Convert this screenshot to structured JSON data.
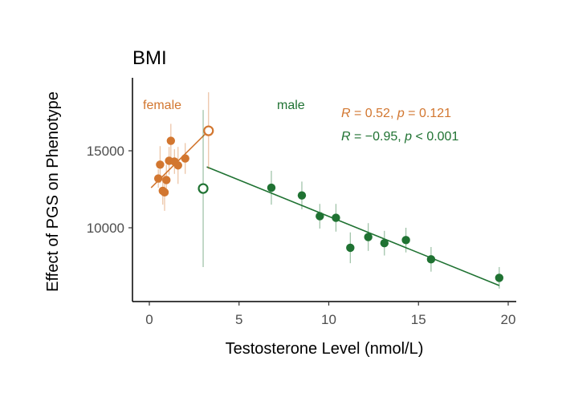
{
  "chart_data": {
    "type": "scatter",
    "title": "BMI",
    "xlabel": "Testosterone Level (nmol/L)",
    "ylabel": "Effect of PGS on Phenotype",
    "xlim": [
      -1,
      20.5
    ],
    "ylim": [
      5000,
      19500
    ],
    "x_ticks": [
      0,
      5,
      10,
      15,
      20
    ],
    "y_ticks": [
      10000,
      15000
    ],
    "x_tick_labels": [
      "0",
      "5",
      "10",
      "15",
      "20"
    ],
    "y_tick_labels": [
      "10000",
      "15000"
    ],
    "grid": false,
    "colors": {
      "female": "#D2762F",
      "male": "#1F7232"
    },
    "series": [
      {
        "name": "female",
        "color": "#D2762F",
        "points": [
          {
            "x": 0.5,
            "y": 13200,
            "err": 600
          },
          {
            "x": 0.6,
            "y": 14100,
            "err": 1200
          },
          {
            "x": 0.75,
            "y": 12400,
            "err": 900
          },
          {
            "x": 0.85,
            "y": 12300,
            "err": 1200
          },
          {
            "x": 0.95,
            "y": 13100,
            "err": 1000
          },
          {
            "x": 1.1,
            "y": 14350,
            "err": 900
          },
          {
            "x": 1.2,
            "y": 15650,
            "err": 1100
          },
          {
            "x": 1.4,
            "y": 14300,
            "err": 800
          },
          {
            "x": 1.6,
            "y": 14050,
            "err": 1200
          },
          {
            "x": 2.0,
            "y": 14500,
            "err": 1000
          }
        ],
        "highlight": {
          "x": 3.3,
          "y": 16300,
          "err": 2500
        },
        "fit": {
          "x": [
            0.1,
            3.3
          ],
          "y": [
            12600,
            16300
          ]
        }
      },
      {
        "name": "male",
        "color": "#1F7232",
        "points": [
          {
            "x": 6.8,
            "y": 12600,
            "err": 1100
          },
          {
            "x": 8.5,
            "y": 12100,
            "err": 900
          },
          {
            "x": 9.5,
            "y": 10750,
            "err": 800
          },
          {
            "x": 10.4,
            "y": 10650,
            "err": 900
          },
          {
            "x": 11.2,
            "y": 8700,
            "err": 1000
          },
          {
            "x": 12.2,
            "y": 9400,
            "err": 900
          },
          {
            "x": 13.1,
            "y": 9000,
            "err": 800
          },
          {
            "x": 14.3,
            "y": 9200,
            "err": 800
          },
          {
            "x": 15.7,
            "y": 7950,
            "err": 800
          },
          {
            "x": 19.5,
            "y": 6750,
            "err": 700
          }
        ],
        "highlight": {
          "x": 3.0,
          "y": 12550,
          "err": 5100
        },
        "fit": {
          "x": [
            3.2,
            19.5
          ],
          "y": [
            13950,
            6250
          ]
        }
      }
    ],
    "annotations": {
      "female_label": "female",
      "male_label": "male",
      "female_stat": {
        "r_label": "R",
        "r_value": " = 0.52, ",
        "p_label": "p",
        "p_value": " = 0.121"
      },
      "male_stat": {
        "r_label": "R",
        "r_value": " = −0.95, ",
        "p_label": "p",
        "p_value": " < 0.001"
      }
    }
  }
}
